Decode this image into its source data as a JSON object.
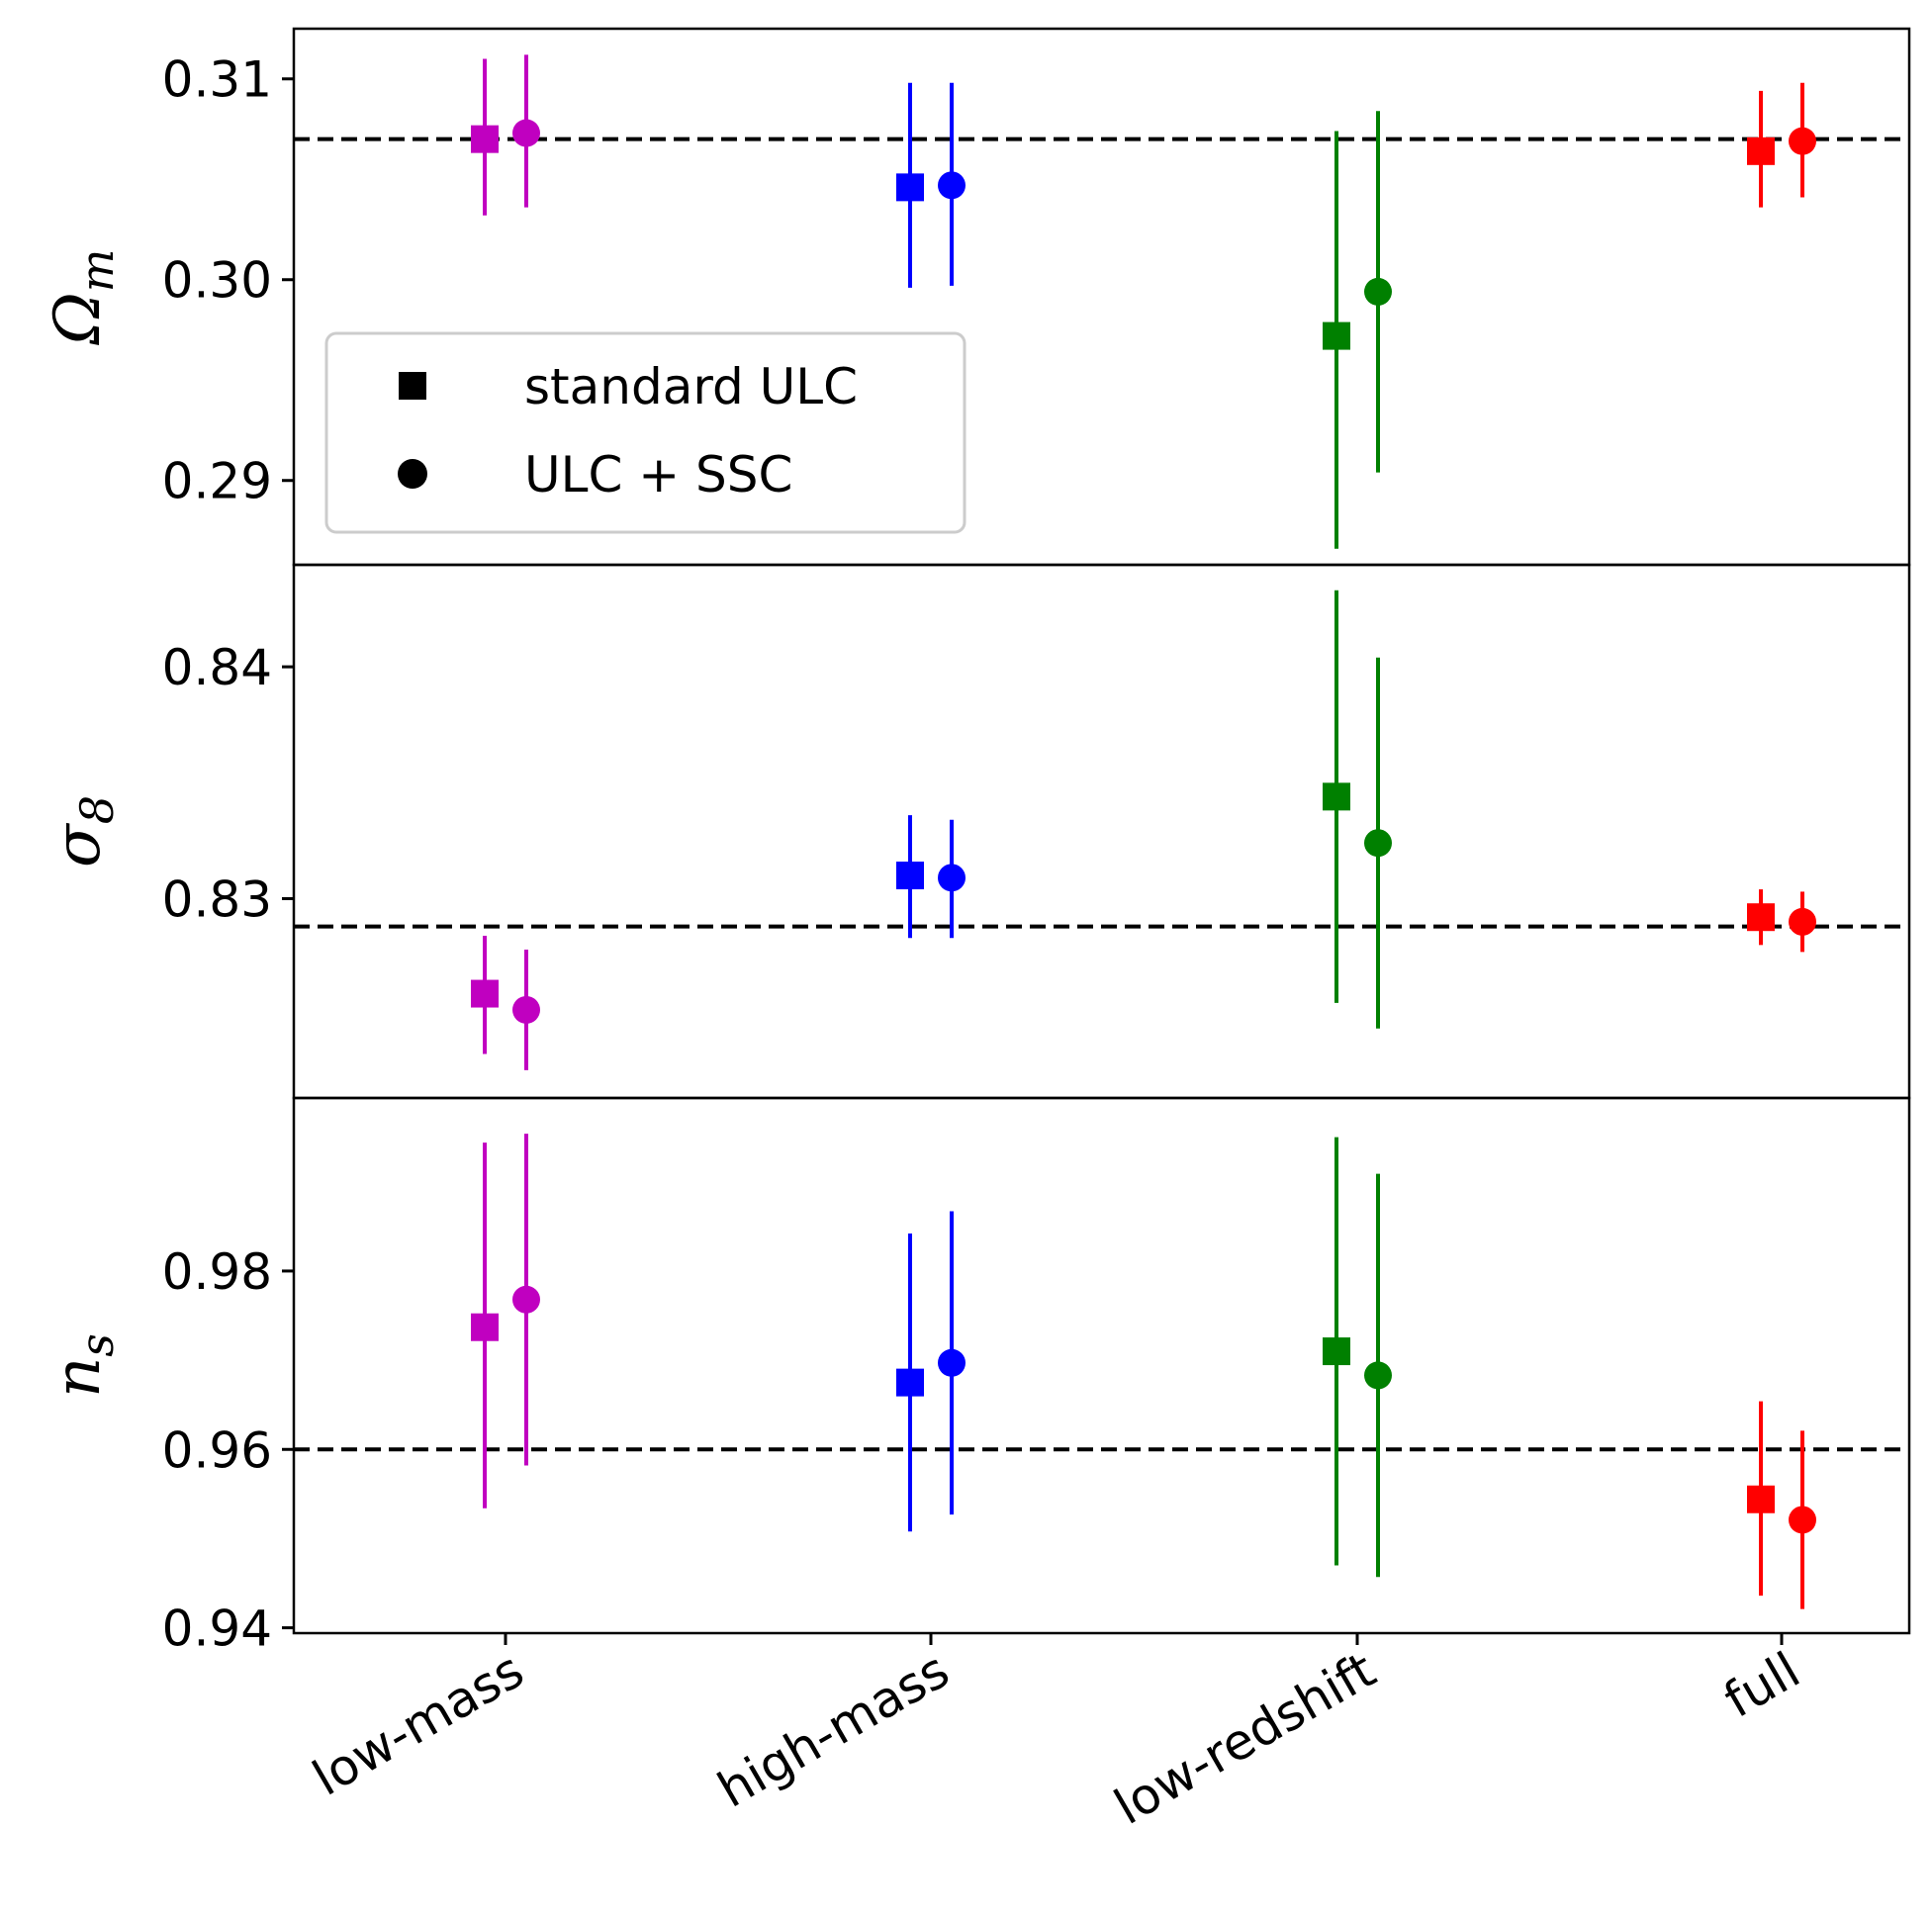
{
  "chart_data": {
    "type": "errorbar",
    "categories": [
      "low-mass",
      "high-mass",
      "low-redshift",
      "full"
    ],
    "category_colors": [
      "#c000c0",
      "#0000ff",
      "#008000",
      "#ff0000"
    ],
    "legend": {
      "placement": "upper-left of top panel",
      "entries": [
        {
          "marker": "square",
          "label": "standard ULC"
        },
        {
          "marker": "circle",
          "label": "ULC + SSC"
        }
      ]
    },
    "panels": [
      {
        "ylabel": "Ω",
        "ylabel_sub": "m",
        "ylim": [
          0.2858,
          0.3125
        ],
        "yticks": [
          0.29,
          0.3,
          0.31
        ],
        "ytick_labels": [
          "0.29",
          "0.30",
          "0.31"
        ],
        "reference": 0.307,
        "series": [
          {
            "name": "standard ULC",
            "marker": "square",
            "values": [
              0.307,
              0.3046,
              0.2972,
              0.3064
            ],
            "err_low": [
              0.0038,
              0.005,
              0.0106,
              0.0028
            ],
            "err_high": [
              0.004,
              0.0052,
              0.0102,
              0.003
            ]
          },
          {
            "name": "ULC + SSC",
            "marker": "circle",
            "values": [
              0.3073,
              0.3047,
              0.2994,
              0.3069
            ],
            "err_low": [
              0.0037,
              0.005,
              0.009,
              0.0028
            ],
            "err_high": [
              0.0039,
              0.0051,
              0.009,
              0.0029
            ]
          }
        ]
      },
      {
        "ylabel": "σ",
        "ylabel_sub": "8",
        "ylim": [
          0.8214,
          0.8444
        ],
        "yticks": [
          0.83,
          0.84
        ],
        "ytick_labels": [
          "0.83",
          "0.84"
        ],
        "reference": 0.8288,
        "series": [
          {
            "name": "standard ULC",
            "marker": "square",
            "values": [
              0.8259,
              0.831,
              0.8344,
              0.8292
            ],
            "err_low": [
              0.0026,
              0.0027,
              0.0089,
              0.0012
            ],
            "err_high": [
              0.0025,
              0.0026,
              0.0089,
              0.0012
            ]
          },
          {
            "name": "ULC + SSC",
            "marker": "circle",
            "values": [
              0.8252,
              0.8309,
              0.8324,
              0.829
            ],
            "err_low": [
              0.0026,
              0.0026,
              0.008,
              0.0013
            ],
            "err_high": [
              0.0026,
              0.0025,
              0.008,
              0.0013
            ]
          }
        ]
      },
      {
        "ylabel": "n",
        "ylabel_sub": "s",
        "ylim": [
          0.9394,
          0.9994
        ],
        "yticks": [
          0.94,
          0.96,
          0.98
        ],
        "ytick_labels": [
          "0.94",
          "0.96",
          "0.98"
        ],
        "reference": 0.96,
        "series": [
          {
            "name": "standard ULC",
            "marker": "square",
            "values": [
              0.9737,
              0.9675,
              0.971,
              0.9544
            ],
            "err_low": [
              0.0203,
              0.0167,
              0.024,
              0.0108
            ],
            "err_high": [
              0.0207,
              0.0167,
              0.024,
              0.011
            ]
          },
          {
            "name": "ULC + SSC",
            "marker": "circle",
            "values": [
              0.9768,
              0.9697,
              0.9683,
              0.9521
            ],
            "err_low": [
              0.0186,
              0.017,
              0.0226,
              0.01
            ],
            "err_high": [
              0.0186,
              0.017,
              0.0226,
              0.01
            ]
          }
        ]
      }
    ]
  }
}
